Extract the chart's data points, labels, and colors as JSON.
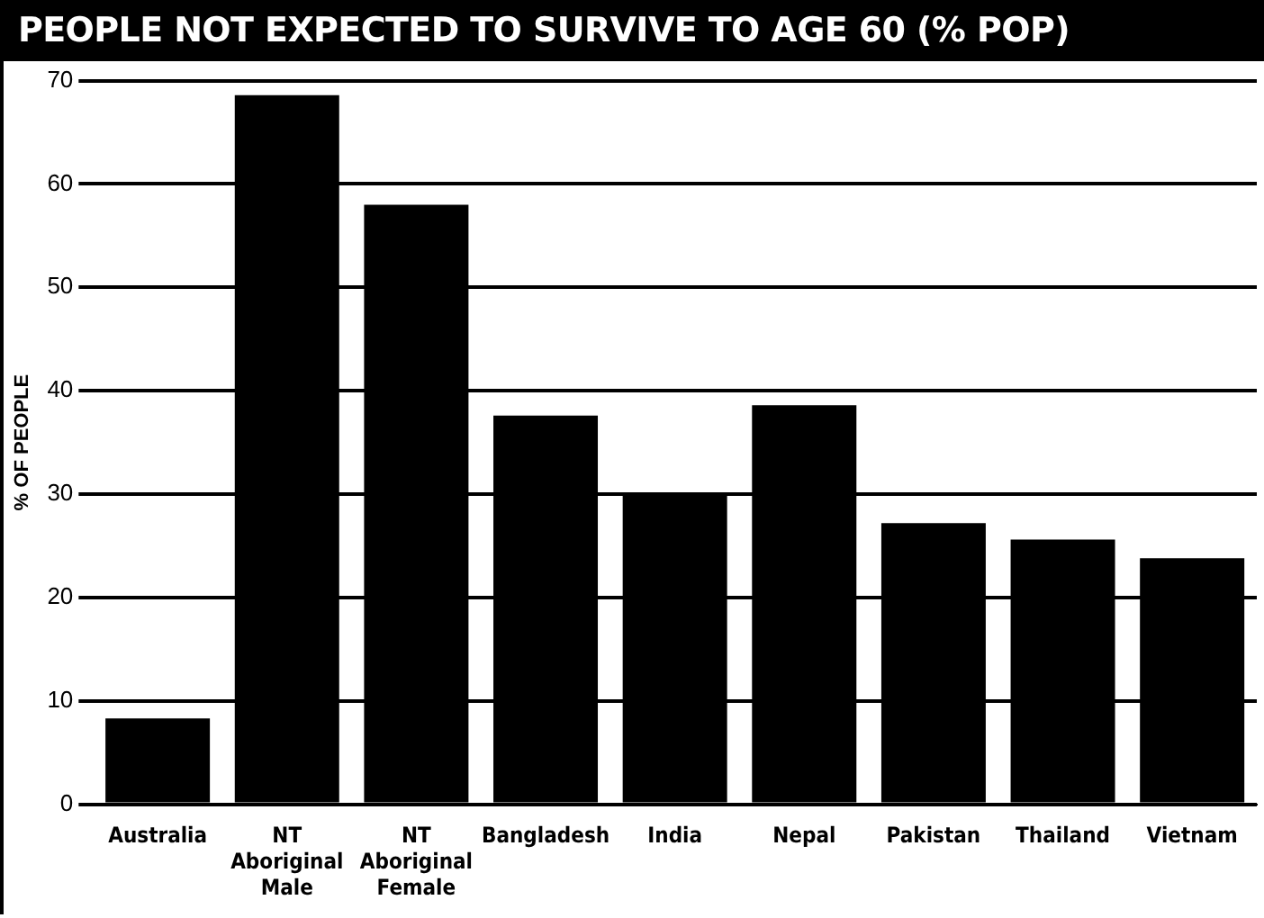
{
  "chart_data": {
    "type": "bar",
    "title": "PEOPLE NOT EXPECTED TO SURVIVE TO AGE 60 (% POP)",
    "ylabel": "% OF PEOPLE",
    "categories": [
      "Australia",
      "NT Aboriginal Male",
      "NT Aboriginal Female",
      "Bangladesh",
      "India",
      "Nepal",
      "Pakistan",
      "Thailand",
      "Vietnam"
    ],
    "values": [
      8.3,
      68.6,
      58,
      37.6,
      30,
      38.6,
      27.2,
      25.6,
      23.8
    ],
    "color": "#000000",
    "ylim": [
      0,
      70
    ],
    "yticks": [
      0,
      10,
      20,
      30,
      40,
      50,
      60,
      70
    ],
    "grid": "y",
    "legend": false
  }
}
